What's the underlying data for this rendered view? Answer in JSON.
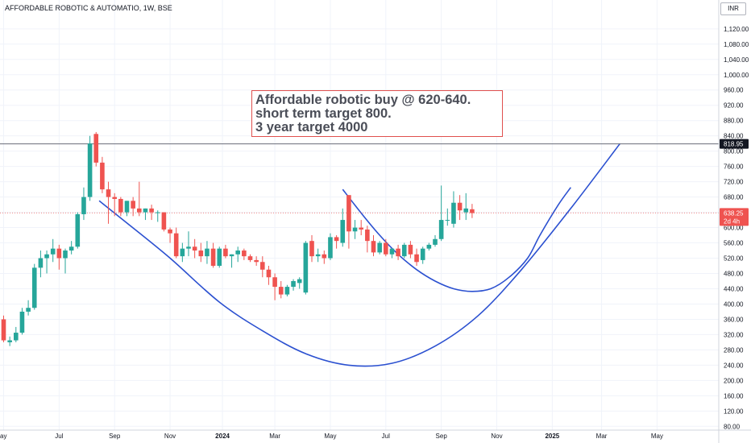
{
  "header": {
    "title": "AFFORDABLE ROBOTIC & AUTOMATIO, 1W, BSE",
    "currency": "INR"
  },
  "annotation": {
    "lines": [
      "Affordable robotic buy @ 620-640.",
      "short term target 800.",
      "3 year target 4000"
    ]
  },
  "colors": {
    "up": "#26a69a",
    "down": "#ef5350",
    "curve": "#2b50d0",
    "annotation_border": "#e0504e"
  },
  "chart_data": {
    "type": "candlestick",
    "title": "AFFORDABLE ROBOTIC & AUTOMATIO, 1W, BSE",
    "ylabel": "INR",
    "ylim": [
      80,
      1160
    ],
    "y_ticks": [
      80,
      120,
      160,
      200,
      240,
      280,
      320,
      360,
      400,
      440,
      480,
      520,
      560,
      600,
      640,
      680,
      720,
      760,
      800,
      840,
      880,
      920,
      960,
      1000,
      1040,
      1080,
      1120
    ],
    "y_tick_labels": [
      "80.00",
      "120.00",
      "160.00",
      "200.00",
      "240.00",
      "280.00",
      "320.00",
      "360.00",
      "400.00",
      "440.00",
      "480.00",
      "520.00",
      "560.00",
      "600.00",
      "640.00",
      "680.00",
      "720.00",
      "760.00",
      "800.00",
      "840.00",
      "880.00",
      "920.00",
      "960.00",
      "1,000.00",
      "1,040.00",
      "1,080.00",
      "1,120.00"
    ],
    "x_tick_labels": [
      "ay",
      "Jul",
      "Sep",
      "Nov",
      "2024",
      "Mar",
      "May",
      "Jul",
      "Sep",
      "Nov",
      "2025",
      "Mar",
      "May"
    ],
    "x_tick_weeks": [
      0,
      9,
      18,
      27,
      35.5,
      44,
      53,
      62,
      71,
      80,
      89,
      97,
      106
    ],
    "price_lines": [
      {
        "label": "818.95",
        "value": 818.95,
        "type": "horizontal",
        "color": "#787b86"
      },
      {
        "label": "638.25",
        "sub": "2d 4h",
        "value": 638.25,
        "type": "current",
        "color": "#ef5350"
      }
    ],
    "candles": [
      {
        "o": 360,
        "h": 370,
        "l": 300,
        "c": 305
      },
      {
        "o": 300,
        "h": 315,
        "l": 290,
        "c": 305
      },
      {
        "o": 305,
        "h": 340,
        "l": 300,
        "c": 325
      },
      {
        "o": 325,
        "h": 390,
        "l": 320,
        "c": 380
      },
      {
        "o": 380,
        "h": 410,
        "l": 370,
        "c": 390
      },
      {
        "o": 390,
        "h": 505,
        "l": 385,
        "c": 495
      },
      {
        "o": 495,
        "h": 540,
        "l": 470,
        "c": 520
      },
      {
        "o": 520,
        "h": 540,
        "l": 480,
        "c": 530
      },
      {
        "o": 530,
        "h": 570,
        "l": 510,
        "c": 545
      },
      {
        "o": 545,
        "h": 555,
        "l": 490,
        "c": 520
      },
      {
        "o": 520,
        "h": 545,
        "l": 480,
        "c": 540
      },
      {
        "o": 540,
        "h": 565,
        "l": 530,
        "c": 550
      },
      {
        "o": 550,
        "h": 640,
        "l": 545,
        "c": 635
      },
      {
        "o": 635,
        "h": 705,
        "l": 620,
        "c": 680
      },
      {
        "o": 680,
        "h": 840,
        "l": 670,
        "c": 820
      },
      {
        "o": 845,
        "h": 850,
        "l": 760,
        "c": 770
      },
      {
        "o": 770,
        "h": 785,
        "l": 690,
        "c": 700
      },
      {
        "o": 700,
        "h": 720,
        "l": 610,
        "c": 680
      },
      {
        "o": 680,
        "h": 690,
        "l": 630,
        "c": 675
      },
      {
        "o": 675,
        "h": 680,
        "l": 630,
        "c": 640
      },
      {
        "o": 640,
        "h": 670,
        "l": 630,
        "c": 670
      },
      {
        "o": 670,
        "h": 680,
        "l": 630,
        "c": 650
      },
      {
        "o": 650,
        "h": 720,
        "l": 630,
        "c": 640
      },
      {
        "o": 640,
        "h": 650,
        "l": 620,
        "c": 650
      },
      {
        "o": 650,
        "h": 660,
        "l": 620,
        "c": 640
      },
      {
        "o": 640,
        "h": 645,
        "l": 615,
        "c": 640
      },
      {
        "o": 640,
        "h": 640,
        "l": 590,
        "c": 595
      },
      {
        "o": 595,
        "h": 600,
        "l": 560,
        "c": 585
      },
      {
        "o": 585,
        "h": 600,
        "l": 520,
        "c": 525
      },
      {
        "o": 525,
        "h": 560,
        "l": 510,
        "c": 545
      },
      {
        "o": 545,
        "h": 590,
        "l": 525,
        "c": 550
      },
      {
        "o": 550,
        "h": 570,
        "l": 520,
        "c": 540
      },
      {
        "o": 540,
        "h": 560,
        "l": 510,
        "c": 525
      },
      {
        "o": 525,
        "h": 565,
        "l": 505,
        "c": 545
      },
      {
        "o": 545,
        "h": 560,
        "l": 495,
        "c": 500
      },
      {
        "o": 500,
        "h": 550,
        "l": 495,
        "c": 545
      },
      {
        "o": 545,
        "h": 555,
        "l": 520,
        "c": 525
      },
      {
        "o": 525,
        "h": 530,
        "l": 495,
        "c": 530
      },
      {
        "o": 530,
        "h": 550,
        "l": 510,
        "c": 540
      },
      {
        "o": 540,
        "h": 545,
        "l": 515,
        "c": 525
      },
      {
        "o": 525,
        "h": 530,
        "l": 510,
        "c": 515
      },
      {
        "o": 515,
        "h": 525,
        "l": 500,
        "c": 510
      },
      {
        "o": 510,
        "h": 525,
        "l": 470,
        "c": 490
      },
      {
        "o": 490,
        "h": 500,
        "l": 450,
        "c": 470
      },
      {
        "o": 470,
        "h": 480,
        "l": 410,
        "c": 445
      },
      {
        "o": 445,
        "h": 460,
        "l": 415,
        "c": 425
      },
      {
        "o": 425,
        "h": 450,
        "l": 420,
        "c": 445
      },
      {
        "o": 445,
        "h": 465,
        "l": 435,
        "c": 460
      },
      {
        "o": 455,
        "h": 470,
        "l": 440,
        "c": 465
      },
      {
        "o": 430,
        "h": 565,
        "l": 425,
        "c": 560
      },
      {
        "o": 565,
        "h": 580,
        "l": 510,
        "c": 525
      },
      {
        "o": 525,
        "h": 545,
        "l": 510,
        "c": 530
      },
      {
        "o": 530,
        "h": 540,
        "l": 505,
        "c": 520
      },
      {
        "o": 520,
        "h": 585,
        "l": 515,
        "c": 575
      },
      {
        "o": 575,
        "h": 580,
        "l": 545,
        "c": 565
      },
      {
        "o": 560,
        "h": 650,
        "l": 550,
        "c": 620
      },
      {
        "o": 685,
        "h": 685,
        "l": 545,
        "c": 590
      },
      {
        "o": 590,
        "h": 620,
        "l": 570,
        "c": 600
      },
      {
        "o": 600,
        "h": 620,
        "l": 580,
        "c": 595
      },
      {
        "o": 595,
        "h": 605,
        "l": 535,
        "c": 565
      },
      {
        "o": 565,
        "h": 580,
        "l": 525,
        "c": 535
      },
      {
        "o": 535,
        "h": 565,
        "l": 530,
        "c": 560
      },
      {
        "o": 560,
        "h": 570,
        "l": 525,
        "c": 530
      },
      {
        "o": 530,
        "h": 545,
        "l": 520,
        "c": 545
      },
      {
        "o": 545,
        "h": 555,
        "l": 515,
        "c": 525
      },
      {
        "o": 525,
        "h": 560,
        "l": 520,
        "c": 555
      },
      {
        "o": 555,
        "h": 565,
        "l": 520,
        "c": 530
      },
      {
        "o": 530,
        "h": 545,
        "l": 500,
        "c": 510
      },
      {
        "o": 515,
        "h": 550,
        "l": 505,
        "c": 545
      },
      {
        "o": 545,
        "h": 560,
        "l": 540,
        "c": 555
      },
      {
        "o": 555,
        "h": 580,
        "l": 550,
        "c": 570
      },
      {
        "o": 570,
        "h": 710,
        "l": 565,
        "c": 620
      },
      {
        "o": 620,
        "h": 650,
        "l": 605,
        "c": 620
      },
      {
        "o": 610,
        "h": 695,
        "l": 600,
        "c": 665
      },
      {
        "o": 665,
        "h": 685,
        "l": 620,
        "c": 645
      },
      {
        "o": 640,
        "h": 690,
        "l": 620,
        "c": 650
      },
      {
        "o": 648,
        "h": 662,
        "l": 625,
        "c": 638
      }
    ],
    "curves": [
      {
        "name": "curve-outer",
        "points": [
          [
            15.5,
            670
          ],
          [
            20,
            612
          ],
          [
            27,
            520
          ],
          [
            35,
            405
          ],
          [
            42,
            330
          ],
          [
            49,
            270
          ],
          [
            56,
            240
          ],
          [
            63,
            245
          ],
          [
            70,
            290
          ],
          [
            77,
            370
          ],
          [
            84,
            490
          ],
          [
            92,
            650
          ],
          [
            100,
            820
          ]
        ]
      },
      {
        "name": "curve-inner",
        "points": [
          [
            55,
            700
          ],
          [
            58,
            638
          ],
          [
            61,
            580
          ],
          [
            64,
            530
          ],
          [
            67,
            490
          ],
          [
            70,
            460
          ],
          [
            73,
            440
          ],
          [
            76,
            433
          ],
          [
            79,
            440
          ],
          [
            82,
            470
          ],
          [
            85,
            520
          ],
          [
            87,
            580
          ],
          [
            90,
            660
          ],
          [
            92,
            705
          ]
        ]
      }
    ]
  }
}
